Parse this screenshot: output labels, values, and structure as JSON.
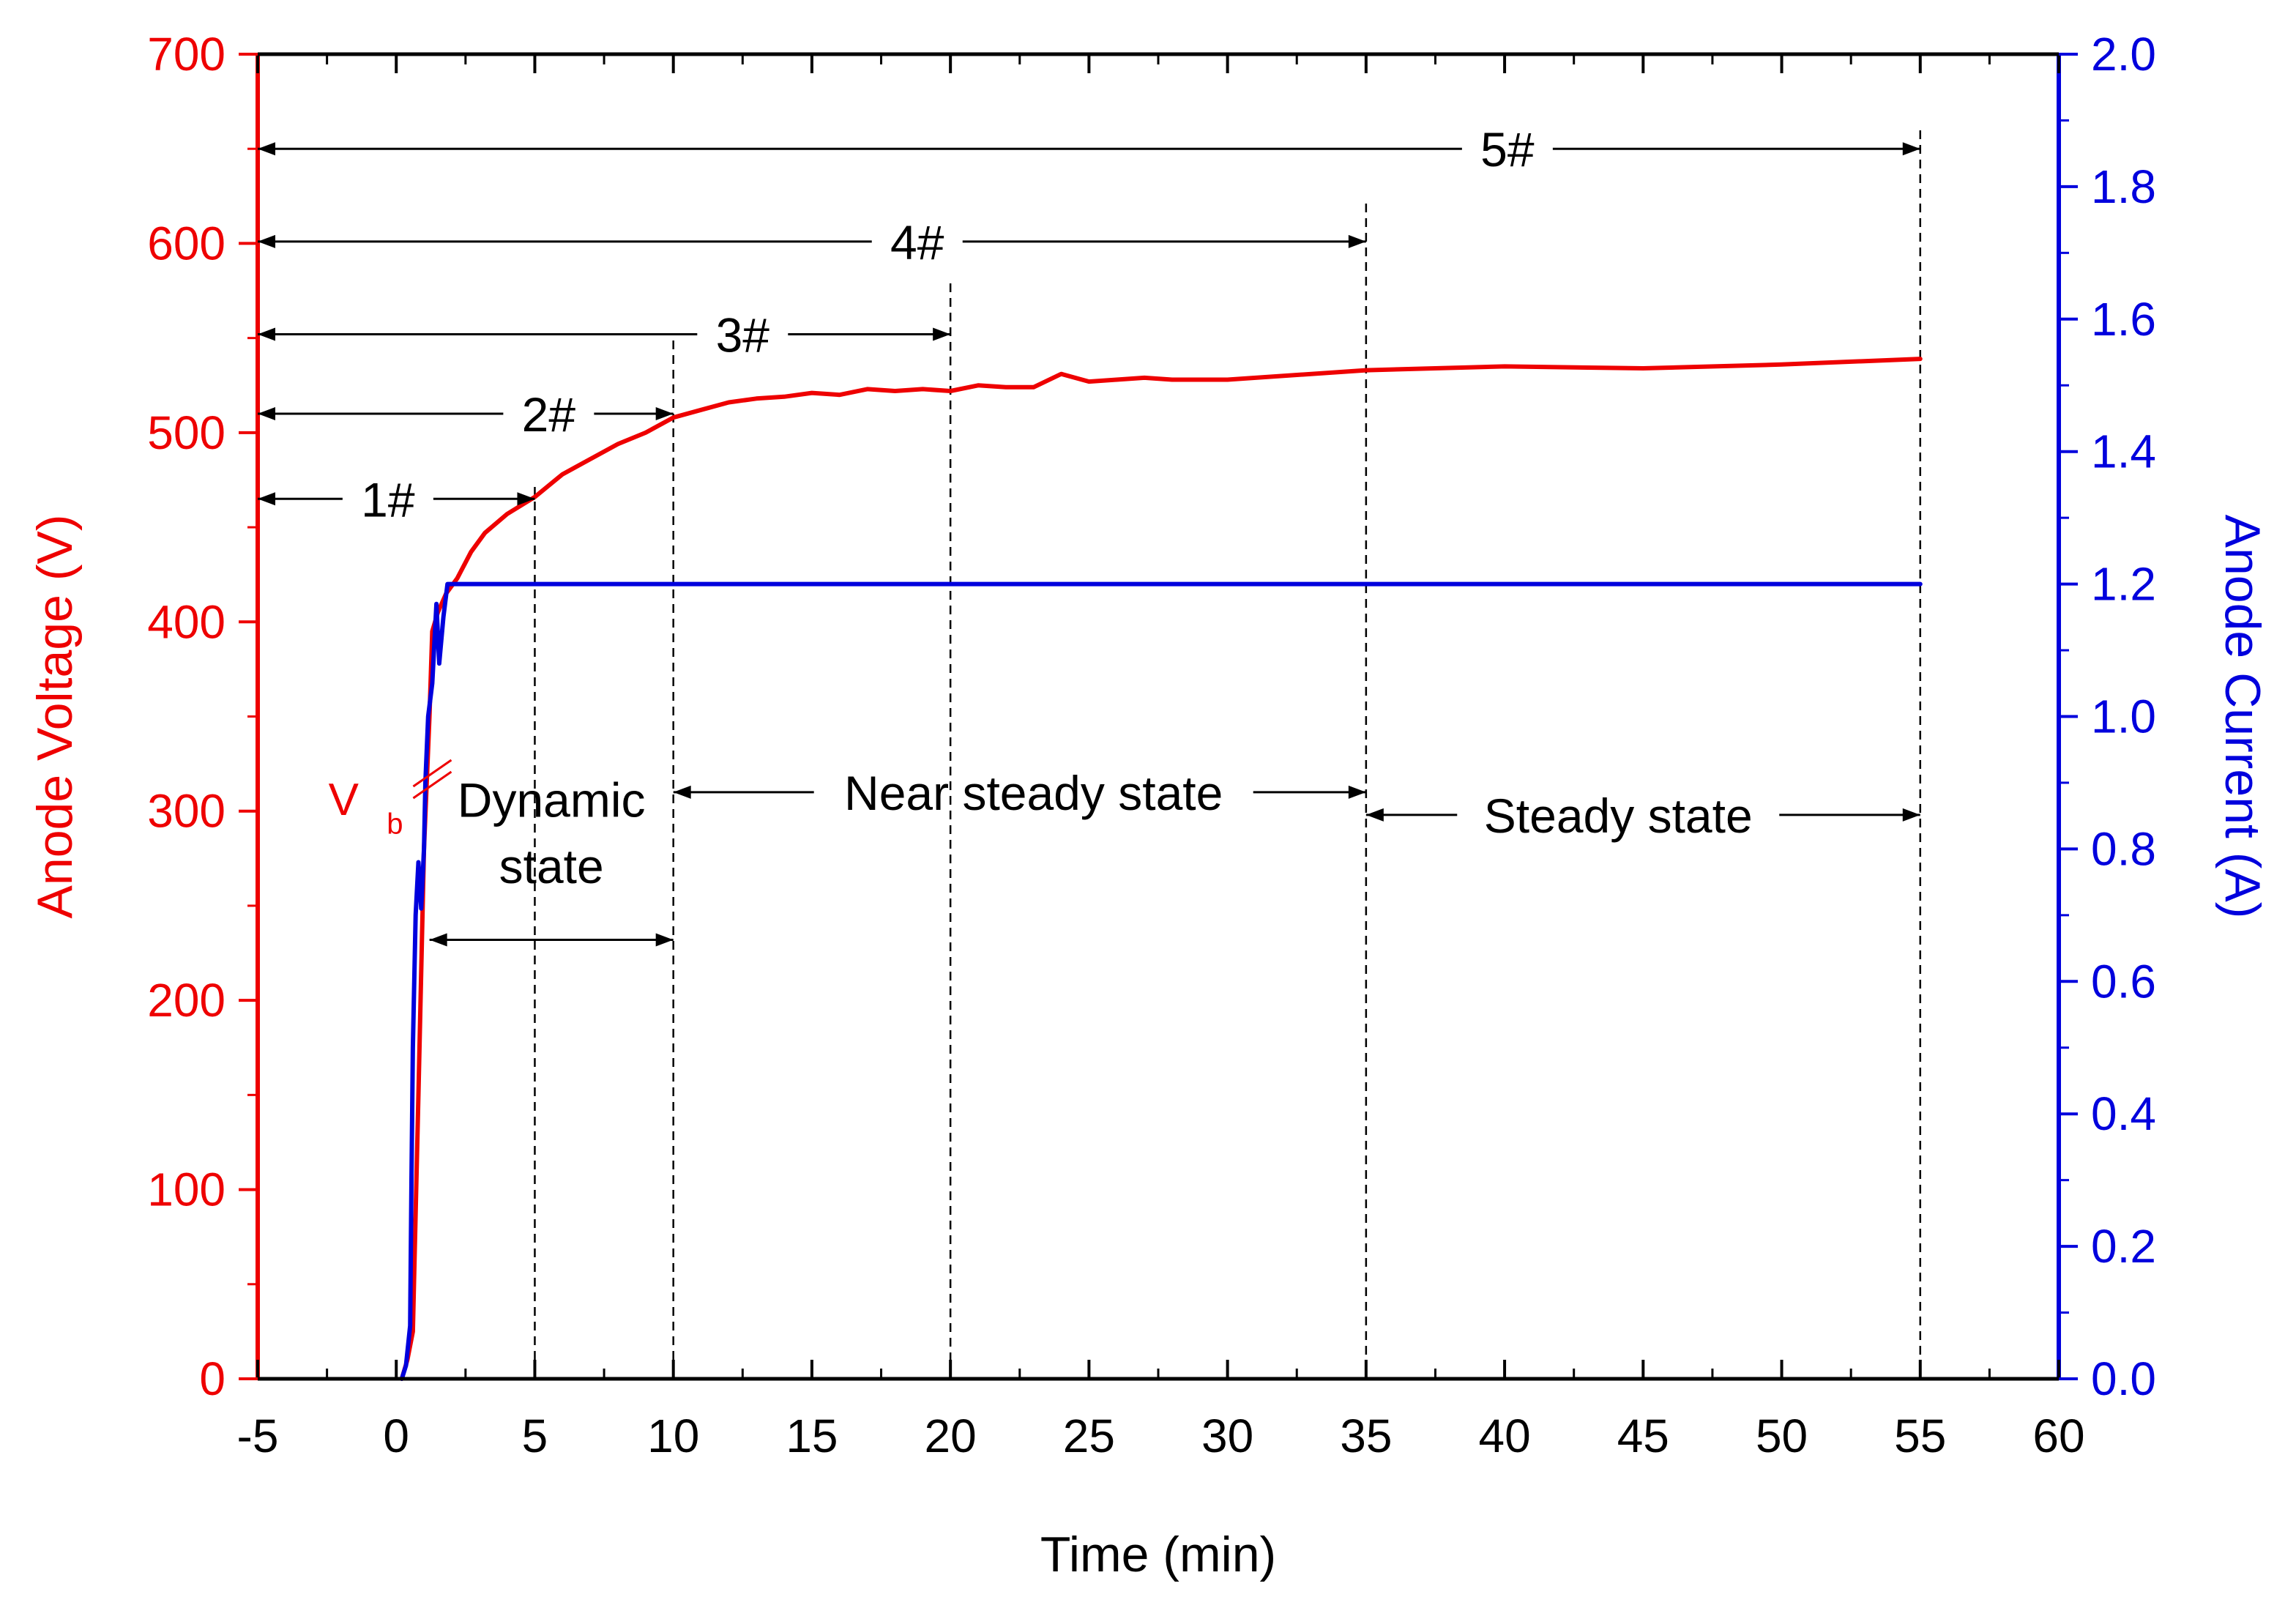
{
  "chart_data": {
    "type": "line",
    "title": "",
    "xlabel": "Time (min)",
    "ylabel_left": "Anode Voltage (V)",
    "ylabel_right": "Anode Current (A)",
    "xlim": [
      -5,
      60
    ],
    "ylim_left": [
      0,
      700
    ],
    "ylim_right": [
      0.0,
      2.0
    ],
    "x_ticks": [
      "-5",
      "0",
      "5",
      "10",
      "15",
      "20",
      "25",
      "30",
      "35",
      "40",
      "45",
      "50",
      "55",
      "60"
    ],
    "y_left_ticks": [
      "0",
      "100",
      "200",
      "300",
      "400",
      "500",
      "600",
      "700"
    ],
    "y_right_ticks": [
      "0.0",
      "0.2",
      "0.4",
      "0.6",
      "0.8",
      "1.0",
      "1.2",
      "1.4",
      "1.6",
      "1.8",
      "2.0"
    ],
    "colors": {
      "voltage": "#ee0000",
      "current": "#0000dd",
      "annotation": "#000000"
    },
    "series": [
      {
        "name": "Anode Voltage",
        "axis": "left",
        "color": "#ee0000",
        "x": [
          0.2,
          0.4,
          0.6,
          0.8,
          1.0,
          1.2,
          1.3,
          1.5,
          1.8,
          2.2,
          2.7,
          3.2,
          4.0,
          5.0,
          6.0,
          7.0,
          8.0,
          9.0,
          10.0,
          11.0,
          12.0,
          13.0,
          14.0,
          15.0,
          16.0,
          17.0,
          18.0,
          19.0,
          20.0,
          21.0,
          22.0,
          23.0,
          24.0,
          25.0,
          26.0,
          27.0,
          28.0,
          29.0,
          30.0,
          35.0,
          40.0,
          45.0,
          50.0,
          55.0
        ],
        "values": [
          0,
          10,
          25,
          150,
          280,
          350,
          395,
          405,
          415,
          423,
          437,
          447,
          457,
          466,
          478,
          486,
          494,
          500,
          508,
          512,
          516,
          518,
          519,
          521,
          520,
          523,
          522,
          523,
          522,
          525,
          524,
          524,
          531,
          527,
          528,
          529,
          528,
          528,
          528,
          533,
          535,
          534,
          536,
          539
        ]
      },
      {
        "name": "Anode Current",
        "axis": "right",
        "color": "#0000dd",
        "x": [
          0.2,
          0.35,
          0.5,
          0.55,
          0.6,
          0.7,
          0.8,
          0.9,
          1.0,
          1.05,
          1.15,
          1.3,
          1.45,
          1.55,
          1.7,
          1.85,
          2.0,
          2.2,
          55.0
        ],
        "values": [
          0.0,
          0.02,
          0.08,
          0.3,
          0.5,
          0.7,
          0.78,
          0.71,
          0.8,
          0.9,
          1.0,
          1.05,
          1.17,
          1.08,
          1.15,
          1.2,
          1.2,
          1.2,
          1.2
        ]
      }
    ],
    "vertical_markers_x": [
      5,
      10,
      20,
      35,
      55
    ],
    "sample_spans": [
      {
        "label": "1#",
        "from": -5,
        "to": 5,
        "y_voltage": 465
      },
      {
        "label": "2#",
        "from": -5,
        "to": 10,
        "y_voltage": 510
      },
      {
        "label": "3#",
        "from": -5,
        "to": 20,
        "y_voltage": 552
      },
      {
        "label": "4#",
        "from": -5,
        "to": 35,
        "y_voltage": 601
      },
      {
        "label": "5#",
        "from": -5,
        "to": 55,
        "y_voltage": 650
      }
    ],
    "state_spans": [
      {
        "label_line1": "Dynamic",
        "label_line2": "state",
        "from": 1.2,
        "to": 10,
        "y_voltage": 232
      },
      {
        "label_line1": "Near steady  state",
        "label_line2": "",
        "from": 10,
        "to": 35,
        "y_voltage": 310
      },
      {
        "label_line1": "Steady  state",
        "label_line2": "",
        "from": 35,
        "to": 55,
        "y_voltage": 298
      }
    ],
    "breakdown_marker": {
      "label": "V",
      "subscript": "b",
      "x": 1.3,
      "y_voltage": 320
    }
  }
}
